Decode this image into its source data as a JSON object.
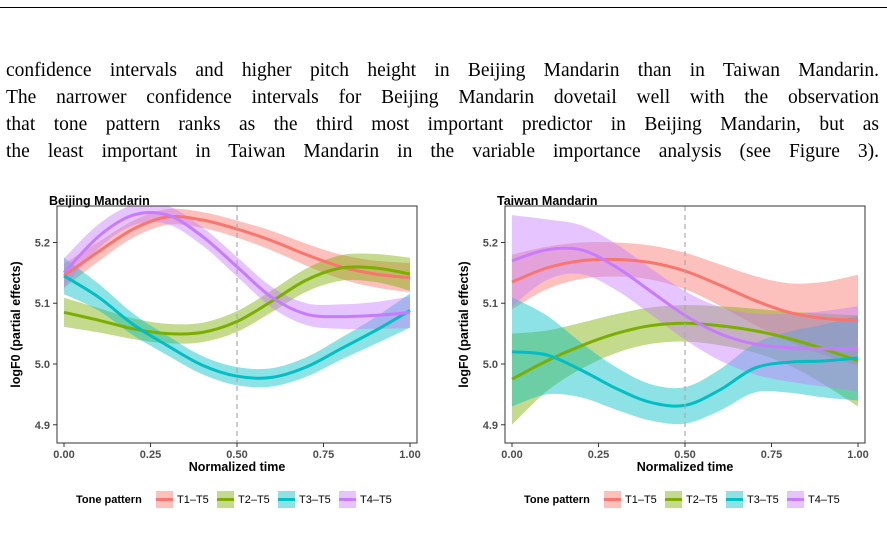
{
  "paragraph": {
    "lines": [
      "confidence intervals and higher pitch height in Beijing Mandarin than in Taiwan Mandarin.",
      "The narrower confidence intervals for Beijing Mandarin dovetail well with the observation",
      "that tone pattern ranks as the third most important predictor in Beijing Mandarin, but as",
      "the least important in Taiwan Mandarin in the variable importance analysis (see Figure 3)."
    ]
  },
  "colors": {
    "T1-T5": "#f8766d",
    "T2-T5": "#7cae00",
    "T3-T5": "#00bfc4",
    "T4-T5": "#c77cff",
    "refline": "#aaaaaa"
  },
  "chart_data": [
    {
      "type": "line",
      "title": "Beijing Mandarin",
      "xlabel": "Normalized time",
      "ylabel": "logF0 (partial effects)",
      "xlim": [
        0,
        1
      ],
      "ylim": [
        4.87,
        5.26
      ],
      "xticks": [
        0,
        0.25,
        0.5,
        0.75,
        1
      ],
      "xtick_labels": [
        "0.00",
        "0.25",
        "0.50",
        "0.75",
        "1.00"
      ],
      "yticks": [
        4.9,
        5.0,
        5.1,
        5.2
      ],
      "ytick_labels": [
        "4.9",
        "5.0",
        "5.1",
        "5.2"
      ],
      "vline_x": 0.5,
      "legend_title": "Tone pattern",
      "legend_position": "bottom",
      "x": [
        0,
        0.1,
        0.2,
        0.3,
        0.4,
        0.5,
        0.6,
        0.7,
        0.8,
        0.9,
        1.0
      ],
      "series": [
        {
          "name": "T1–T5",
          "values": [
            5.145,
            5.185,
            5.222,
            5.242,
            5.237,
            5.222,
            5.203,
            5.18,
            5.16,
            5.148,
            5.142
          ],
          "ci": [
            0.02,
            0.016,
            0.014,
            0.013,
            0.013,
            0.014,
            0.016,
            0.018,
            0.02,
            0.022,
            0.024
          ]
        },
        {
          "name": "T2–T5",
          "values": [
            5.085,
            5.072,
            5.058,
            5.05,
            5.052,
            5.07,
            5.103,
            5.138,
            5.158,
            5.158,
            5.148
          ],
          "ci": [
            0.024,
            0.02,
            0.017,
            0.016,
            0.016,
            0.017,
            0.018,
            0.019,
            0.021,
            0.023,
            0.027
          ]
        },
        {
          "name": "T3–T5",
          "values": [
            5.145,
            5.11,
            5.065,
            5.03,
            4.998,
            4.98,
            4.978,
            4.995,
            5.025,
            5.055,
            5.088
          ],
          "ci": [
            0.03,
            0.022,
            0.018,
            0.016,
            0.015,
            0.015,
            0.015,
            0.016,
            0.018,
            0.022,
            0.028
          ]
        },
        {
          "name": "T4–T5",
          "values": [
            5.15,
            5.21,
            5.245,
            5.245,
            5.21,
            5.16,
            5.11,
            5.082,
            5.078,
            5.08,
            5.085
          ],
          "ci": [
            0.024,
            0.02,
            0.017,
            0.015,
            0.015,
            0.016,
            0.017,
            0.018,
            0.02,
            0.022,
            0.026
          ]
        }
      ]
    },
    {
      "type": "line",
      "title": "Taiwan Mandarin",
      "xlabel": "Normalized time",
      "ylabel": "logF0 (partial effects)",
      "xlim": [
        0,
        1
      ],
      "ylim": [
        4.87,
        5.26
      ],
      "xticks": [
        0,
        0.25,
        0.5,
        0.75,
        1
      ],
      "xtick_labels": [
        "0.00",
        "0.25",
        "0.50",
        "0.75",
        "1.00"
      ],
      "yticks": [
        4.9,
        5.0,
        5.1,
        5.2
      ],
      "ytick_labels": [
        "4.9",
        "5.0",
        "5.1",
        "5.2"
      ],
      "vline_x": 0.5,
      "legend_title": "Tone pattern",
      "legend_position": "bottom",
      "x": [
        0,
        0.1,
        0.2,
        0.3,
        0.4,
        0.5,
        0.6,
        0.7,
        0.8,
        0.9,
        1.0
      ],
      "series": [
        {
          "name": "T1–T5",
          "values": [
            5.135,
            5.158,
            5.17,
            5.172,
            5.167,
            5.153,
            5.13,
            5.105,
            5.085,
            5.075,
            5.072
          ],
          "ci": [
            0.045,
            0.035,
            0.03,
            0.028,
            0.028,
            0.03,
            0.034,
            0.04,
            0.048,
            0.06,
            0.075
          ]
        },
        {
          "name": "T2–T5",
          "values": [
            4.975,
            5.005,
            5.03,
            5.05,
            5.063,
            5.067,
            5.063,
            5.055,
            5.042,
            5.025,
            5.005
          ],
          "ci": [
            0.075,
            0.05,
            0.038,
            0.032,
            0.03,
            0.03,
            0.032,
            0.036,
            0.044,
            0.058,
            0.075
          ]
        },
        {
          "name": "T3–T5",
          "values": [
            5.02,
            5.015,
            4.99,
            4.96,
            4.937,
            4.932,
            4.957,
            4.993,
            5.003,
            5.005,
            5.01
          ],
          "ci": [
            0.09,
            0.065,
            0.045,
            0.035,
            0.03,
            0.03,
            0.034,
            0.04,
            0.05,
            0.06,
            0.07
          ]
        },
        {
          "name": "T4–T5",
          "values": [
            5.17,
            5.188,
            5.188,
            5.16,
            5.12,
            5.08,
            5.05,
            5.033,
            5.027,
            5.025,
            5.025
          ],
          "ci": [
            0.075,
            0.05,
            0.04,
            0.038,
            0.038,
            0.04,
            0.044,
            0.05,
            0.056,
            0.062,
            0.07
          ]
        }
      ]
    }
  ]
}
